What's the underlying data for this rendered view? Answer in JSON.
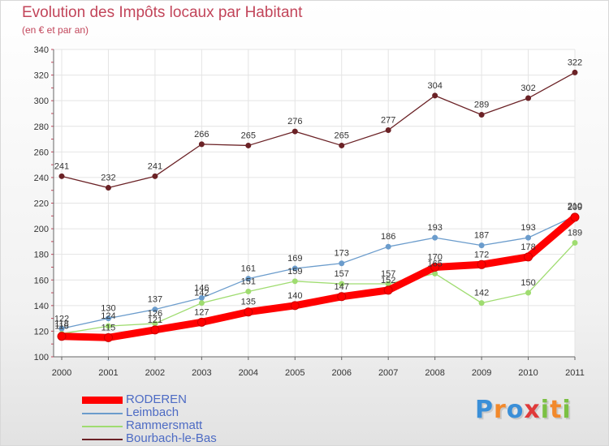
{
  "colors": {
    "title": "#c2455a",
    "legend_text": "#4d6bc4",
    "axis": "#666666",
    "grid": "#e4e4e4"
  },
  "chart_data": {
    "type": "line",
    "title": "Evolution des Impôts locaux par Habitant",
    "subtitle": "(en € et par an)",
    "xlabel": "",
    "ylabel": "",
    "categories": [
      "2000",
      "2001",
      "2002",
      "2003",
      "2004",
      "2005",
      "2006",
      "2007",
      "2008",
      "2009",
      "2010",
      "2011"
    ],
    "ylim": [
      100,
      340
    ],
    "yticks": [
      100,
      120,
      140,
      160,
      180,
      200,
      220,
      240,
      260,
      280,
      300,
      320,
      340
    ],
    "grid": true,
    "legend_position": "bottom-left",
    "series": [
      {
        "name": "Bourbach-le-Bas",
        "color": "#6b2226",
        "values": [
          241,
          232,
          241,
          266,
          265,
          276,
          265,
          277,
          304,
          289,
          302,
          322
        ]
      },
      {
        "name": "Leimbach",
        "color": "#6b9ccc",
        "values": [
          122,
          130,
          137,
          146,
          161,
          169,
          173,
          186,
          193,
          187,
          193,
          210
        ]
      },
      {
        "name": "Rammersmatt",
        "color": "#9fdc70",
        "values": [
          118,
          124,
          126,
          142,
          151,
          159,
          157,
          157,
          165,
          142,
          150,
          189
        ]
      },
      {
        "name": "RODEREN",
        "color": "#ff0000",
        "values": [
          116,
          115,
          121,
          127,
          135,
          140,
          147,
          152,
          170,
          172,
          178,
          209
        ]
      }
    ],
    "legend": [
      "RODEREN",
      "Leimbach",
      "Rammersmatt",
      "Bourbach-le-Bas"
    ]
  },
  "logo": {
    "letters": [
      "P",
      "r",
      "o",
      "x",
      "i",
      "t",
      "i"
    ],
    "colors": [
      "#3a8fd8",
      "#f2892b",
      "#3a8fd8",
      "#e03a3a",
      "#7bc043",
      "#f2892b",
      "#7bc043"
    ]
  }
}
